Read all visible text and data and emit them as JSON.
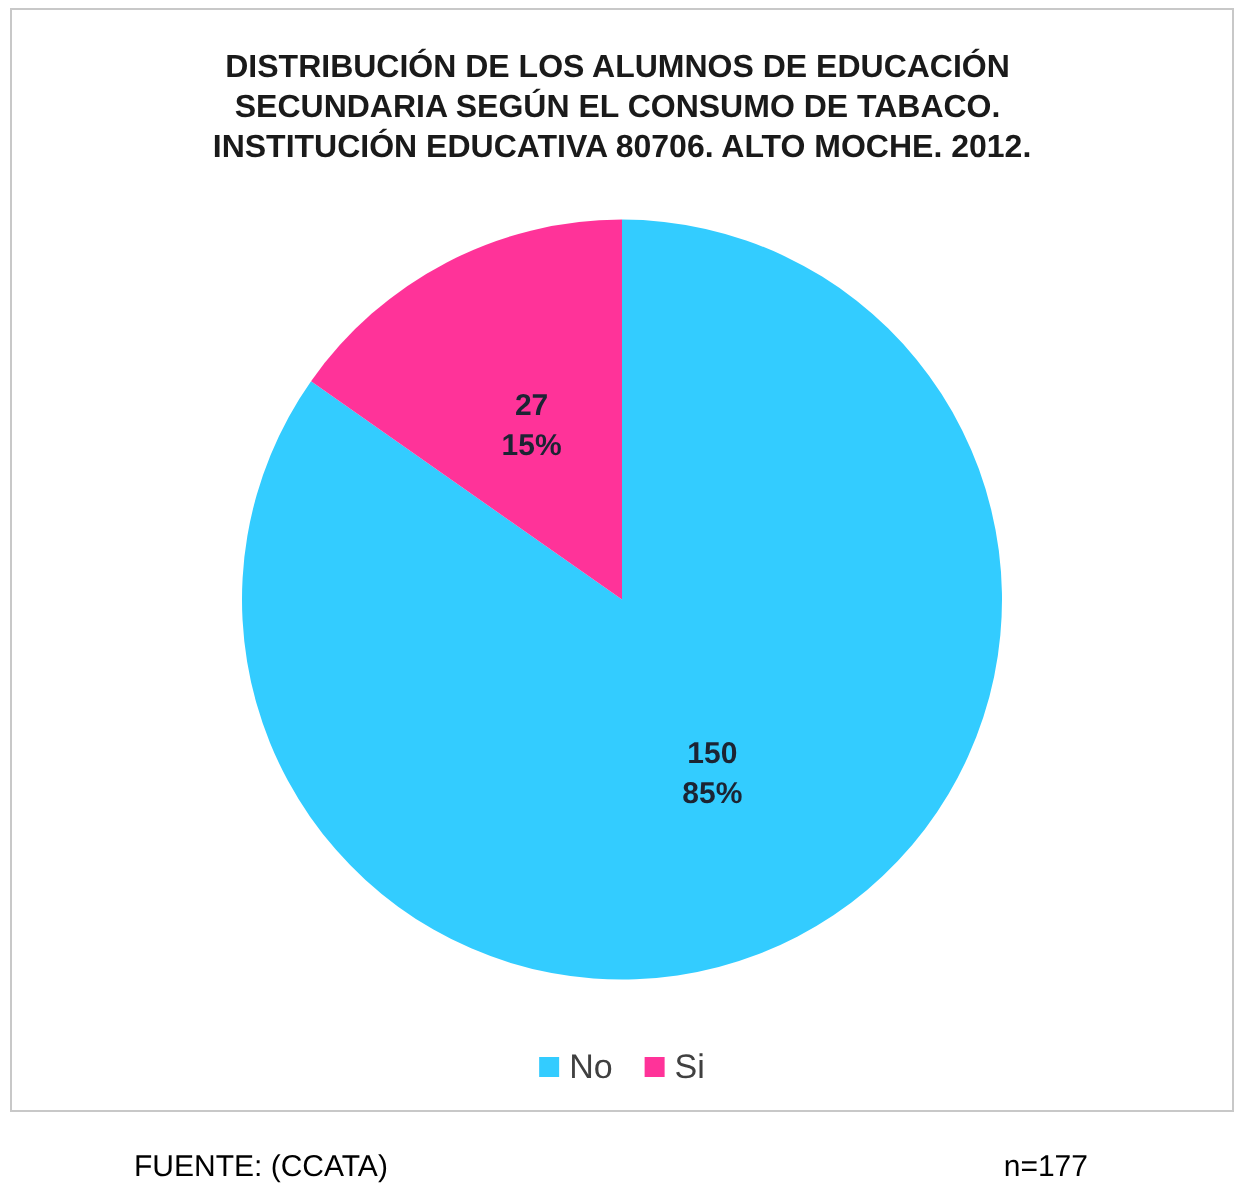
{
  "chart_data": {
    "type": "pie",
    "title": "DISTRIBUCIÓN DE LOS ALUMNOS DE EDUCACIÓN SECUNDARIA SEGÚN EL CONSUMO DE TABACO. INSTITUCIÓN EDUCATIVA 80706. ALTO MOCHE. 2012.",
    "categories": [
      "No",
      "Si"
    ],
    "values": [
      150,
      27
    ],
    "colors": [
      "#33ccff",
      "#ff3399"
    ],
    "value_labels": [
      "150\n85%",
      "27\n15%"
    ],
    "legend": "bottom",
    "annotations": [
      "FUENTE: (CCATA)",
      "n=177"
    ]
  }
}
